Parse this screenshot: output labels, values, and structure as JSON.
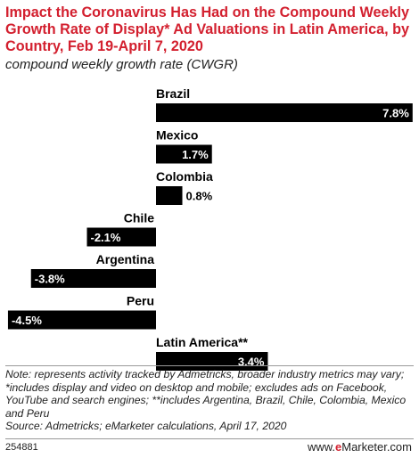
{
  "header": {
    "title": "Impact the Coronavirus Has Had on the Compound Weekly Growth Rate of Display* Ad Valuations in Latin America, by Country, Feb 19-April 7, 2020",
    "subtitle": "compound weekly growth rate (CWGR)"
  },
  "chart_data": {
    "type": "bar",
    "orientation": "horizontal",
    "title": "Impact the Coronavirus Has Had on the Compound Weekly Growth Rate of Display* Ad Valuations in Latin America, by Country, Feb 19-April 7, 2020",
    "subtitle": "compound weekly growth rate (CWGR)",
    "categories": [
      "Brazil",
      "Mexico",
      "Colombia",
      "Chile",
      "Argentina",
      "Peru",
      "Latin America**"
    ],
    "values": [
      7.8,
      1.7,
      0.8,
      -2.1,
      -3.8,
      -4.5,
      3.4
    ],
    "value_labels": [
      "7.8%",
      "1.7%",
      "0.8%",
      "-2.1%",
      "-3.8%",
      "-4.5%",
      "3.4%"
    ],
    "unit": "%",
    "xlim": [
      -4.5,
      7.8
    ],
    "grid": false,
    "legend": "none",
    "bar_color": "#000000",
    "inside_label_color": "#ffffff",
    "outside_label_color": "#000000"
  },
  "footer": {
    "note": "Note: represents activity tracked by Admetricks, broader industry metrics may vary; *includes display and video on desktop and mobile; excludes ads on Facebook, YouTube and search engines; **includes Argentina, Brazil, Chile, Colombia, Mexico and Peru",
    "source": "Source: Admetricks; eMarketer calculations, April 17, 2020",
    "chart_id": "254881",
    "brand_prefix": "www.",
    "brand_e": "e",
    "brand_rest": "Marketer.com"
  },
  "colors": {
    "title": "#d3202f",
    "brand_accent": "#d3202f"
  }
}
